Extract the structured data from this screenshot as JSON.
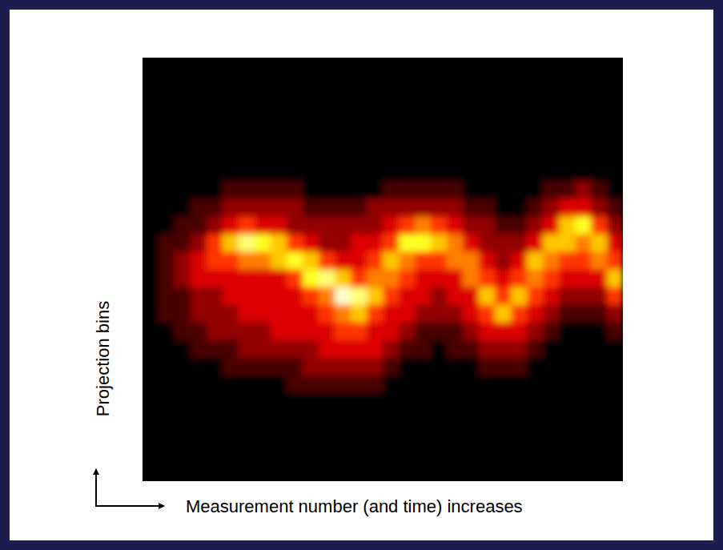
{
  "chart_data": {
    "type": "heatmap",
    "x_label": "Measurement number (and time) increases",
    "y_label": "Projection bins",
    "tick_labels": false,
    "zlim": [
      0,
      9
    ],
    "cells": [
      [
        0,
        0,
        0,
        0,
        0,
        0,
        0,
        0,
        0,
        0,
        0,
        0,
        0,
        0,
        0,
        0,
        0,
        0,
        0,
        0,
        0,
        0,
        0,
        0,
        0,
        0,
        0,
        0,
        0,
        0
      ],
      [
        0,
        0,
        0,
        0,
        0,
        0,
        0,
        0,
        0,
        0,
        0,
        0,
        0,
        0,
        0,
        0,
        0,
        0,
        0,
        0,
        0,
        0,
        0,
        0,
        0,
        0,
        0,
        0,
        0,
        0
      ],
      [
        0,
        0,
        0,
        0,
        0,
        0,
        0,
        0,
        0,
        0,
        0,
        0,
        0,
        0,
        0,
        0,
        0,
        0,
        0,
        0,
        0,
        0,
        0,
        0,
        0,
        0,
        0,
        0,
        0,
        0
      ],
      [
        0,
        0,
        0,
        0,
        0,
        0,
        0,
        0,
        0,
        0,
        0,
        0,
        0,
        0,
        0,
        0,
        0,
        0,
        0,
        0,
        0,
        0,
        0,
        0,
        0,
        0,
        0,
        0,
        0,
        0
      ],
      [
        0,
        0,
        0,
        0,
        0,
        0,
        0,
        0,
        0,
        0,
        0,
        0,
        0,
        0,
        0,
        0,
        0,
        0,
        0,
        0,
        0,
        0,
        0,
        0,
        0,
        0,
        0,
        0,
        0,
        0
      ],
      [
        0,
        0,
        0,
        0,
        0,
        0,
        0,
        0,
        0,
        0,
        0,
        0,
        0,
        0,
        0,
        0,
        0,
        0,
        0,
        0,
        0,
        0,
        0,
        0,
        0,
        0,
        0,
        0,
        0,
        0
      ],
      [
        0,
        0,
        0,
        0,
        0,
        0,
        0,
        0,
        0,
        0,
        0,
        0,
        0,
        0,
        0,
        0,
        0,
        0,
        0,
        0,
        0,
        0,
        0,
        0,
        0,
        0,
        0,
        0,
        0,
        0
      ],
      [
        0,
        0,
        0,
        0,
        0,
        1,
        1,
        1,
        1,
        1,
        0,
        0,
        0,
        0,
        0,
        1,
        1,
        1,
        1,
        1,
        0,
        0,
        0,
        0,
        0,
        1,
        1,
        2,
        1,
        0
      ],
      [
        0,
        0,
        0,
        1,
        1,
        2,
        2,
        2,
        2,
        2,
        1,
        1,
        1,
        1,
        2,
        2,
        2,
        2,
        2,
        2,
        1,
        1,
        0,
        0,
        1,
        2,
        3,
        3,
        2,
        1
      ],
      [
        0,
        0,
        1,
        1,
        2,
        3,
        4,
        3,
        3,
        2,
        2,
        2,
        2,
        2,
        2,
        3,
        4,
        5,
        4,
        3,
        2,
        2,
        1,
        1,
        2,
        3,
        6,
        7,
        4,
        2
      ],
      [
        0,
        1,
        1,
        2,
        4,
        6,
        8,
        7,
        6,
        4,
        3,
        2,
        2,
        3,
        3,
        4,
        7,
        7,
        6,
        5,
        3,
        2,
        2,
        2,
        3,
        6,
        6,
        5,
        6,
        3
      ],
      [
        0,
        1,
        2,
        3,
        4,
        4,
        5,
        5,
        6,
        7,
        6,
        4,
        3,
        3,
        4,
        6,
        5,
        4,
        4,
        5,
        5,
        3,
        2,
        3,
        6,
        5,
        4,
        4,
        5,
        4
      ],
      [
        0,
        1,
        2,
        3,
        3,
        3,
        3,
        3,
        3,
        4,
        7,
        8,
        6,
        4,
        5,
        5,
        4,
        3,
        3,
        3,
        5,
        4,
        3,
        4,
        5,
        4,
        3,
        3,
        3,
        6
      ],
      [
        0,
        1,
        1,
        2,
        2,
        3,
        3,
        3,
        3,
        3,
        4,
        5,
        9,
        8,
        6,
        4,
        3,
        3,
        2,
        3,
        3,
        6,
        4,
        6,
        4,
        3,
        2,
        2,
        2,
        4
      ],
      [
        0,
        1,
        1,
        2,
        2,
        2,
        3,
        3,
        3,
        3,
        3,
        4,
        5,
        6,
        4,
        3,
        3,
        2,
        2,
        2,
        3,
        4,
        6,
        4,
        3,
        2,
        1,
        1,
        1,
        2
      ],
      [
        0,
        0,
        1,
        1,
        2,
        2,
        2,
        2,
        3,
        3,
        3,
        3,
        4,
        4,
        3,
        3,
        2,
        1,
        1,
        1,
        2,
        3,
        3,
        3,
        2,
        1,
        0,
        0,
        0,
        1
      ],
      [
        0,
        0,
        0,
        1,
        1,
        1,
        2,
        2,
        2,
        2,
        2,
        3,
        3,
        3,
        3,
        2,
        1,
        1,
        0,
        1,
        1,
        2,
        2,
        2,
        1,
        0,
        0,
        0,
        0,
        0
      ],
      [
        0,
        0,
        0,
        0,
        0,
        1,
        1,
        1,
        1,
        1,
        2,
        2,
        2,
        2,
        2,
        1,
        0,
        0,
        0,
        0,
        0,
        1,
        1,
        1,
        0,
        0,
        0,
        0,
        0,
        0
      ],
      [
        0,
        0,
        0,
        0,
        0,
        0,
        0,
        0,
        0,
        1,
        1,
        1,
        1,
        1,
        1,
        0,
        0,
        0,
        0,
        0,
        0,
        0,
        0,
        0,
        0,
        0,
        0,
        0,
        0,
        0
      ],
      [
        0,
        0,
        0,
        0,
        0,
        0,
        0,
        0,
        0,
        0,
        0,
        0,
        0,
        0,
        0,
        0,
        0,
        0,
        0,
        0,
        0,
        0,
        0,
        0,
        0,
        0,
        0,
        0,
        0,
        0
      ],
      [
        0,
        0,
        0,
        0,
        0,
        0,
        0,
        0,
        0,
        0,
        0,
        0,
        0,
        0,
        0,
        0,
        0,
        0,
        0,
        0,
        0,
        0,
        0,
        0,
        0,
        0,
        0,
        0,
        0,
        0
      ],
      [
        0,
        0,
        0,
        0,
        0,
        0,
        0,
        0,
        0,
        0,
        0,
        0,
        0,
        0,
        0,
        0,
        0,
        0,
        0,
        0,
        0,
        0,
        0,
        0,
        0,
        0,
        0,
        0,
        0,
        0
      ],
      [
        0,
        0,
        0,
        0,
        0,
        0,
        0,
        0,
        0,
        0,
        0,
        0,
        0,
        0,
        0,
        0,
        0,
        0,
        0,
        0,
        0,
        0,
        0,
        0,
        0,
        0,
        0,
        0,
        0,
        0
      ],
      [
        0,
        0,
        0,
        0,
        0,
        0,
        0,
        0,
        0,
        0,
        0,
        0,
        0,
        0,
        0,
        0,
        0,
        0,
        0,
        0,
        0,
        0,
        0,
        0,
        0,
        0,
        0,
        0,
        0,
        0
      ]
    ]
  }
}
